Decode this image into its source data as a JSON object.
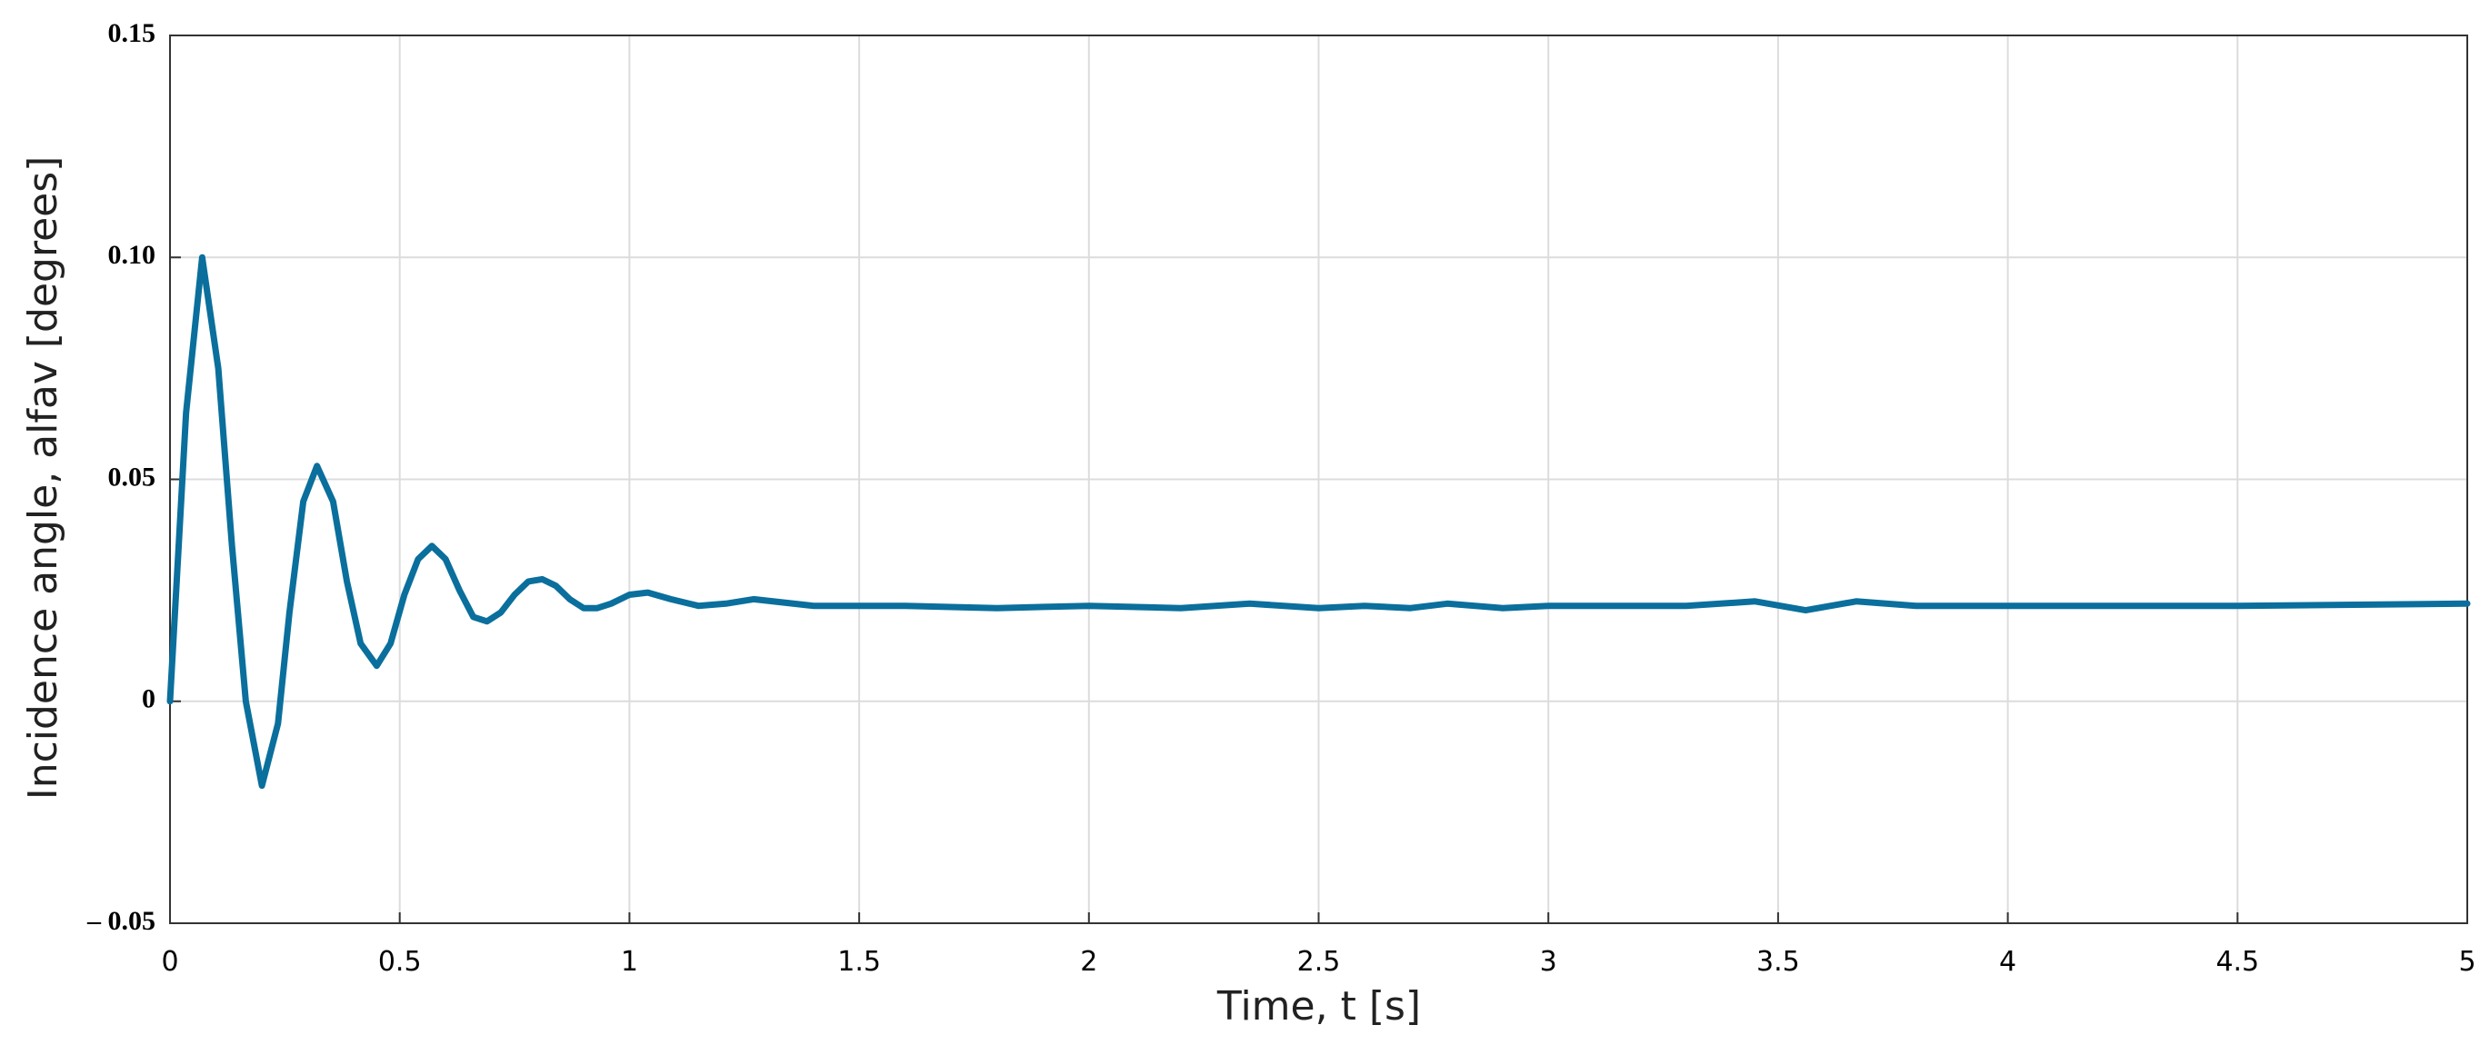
{
  "chart_data": {
    "type": "line",
    "xlabel": "Time, t [s]",
    "ylabel": "Incidence angle, alfav [degrees]",
    "xlim": [
      0,
      5
    ],
    "ylim": [
      -0.05,
      0.15
    ],
    "xticks": [
      0,
      0.5,
      1,
      1.5,
      2,
      2.5,
      3,
      3.5,
      4,
      4.5,
      5
    ],
    "yticks": [
      0.15,
      {
        "value": 0.1,
        "label": "0.10"
      },
      0.05,
      0,
      {
        "value": -0.05,
        "label": "– 0.05"
      }
    ],
    "grid": true,
    "series": [
      {
        "color": "#0a6f9c",
        "x": [
          0,
          0.035,
          0.07,
          0.105,
          0.135,
          0.165,
          0.2,
          0.235,
          0.26,
          0.29,
          0.32,
          0.355,
          0.385,
          0.415,
          0.45,
          0.48,
          0.51,
          0.54,
          0.57,
          0.6,
          0.63,
          0.66,
          0.69,
          0.72,
          0.75,
          0.78,
          0.81,
          0.84,
          0.87,
          0.9,
          0.93,
          0.96,
          1.0,
          1.04,
          1.09,
          1.15,
          1.21,
          1.27,
          1.4,
          1.6,
          1.8,
          2.0,
          2.2,
          2.35,
          2.5,
          2.6,
          2.7,
          2.78,
          2.9,
          3.0,
          3.3,
          3.45,
          3.56,
          3.67,
          3.8,
          4.0,
          4.5,
          5.0
        ],
        "values": [
          0,
          0.065,
          0.1,
          0.075,
          0.035,
          0.0,
          -0.019,
          -0.005,
          0.02,
          0.045,
          0.053,
          0.045,
          0.027,
          0.013,
          0.008,
          0.013,
          0.024,
          0.032,
          0.035,
          0.032,
          0.025,
          0.019,
          0.018,
          0.02,
          0.024,
          0.027,
          0.0275,
          0.026,
          0.023,
          0.021,
          0.021,
          0.022,
          0.024,
          0.0245,
          0.023,
          0.0215,
          0.022,
          0.023,
          0.0215,
          0.0215,
          0.021,
          0.0215,
          0.021,
          0.022,
          0.021,
          0.0215,
          0.021,
          0.022,
          0.021,
          0.0215,
          0.0215,
          0.0225,
          0.0205,
          0.0225,
          0.0215,
          0.0215,
          0.0215,
          0.022
        ]
      }
    ]
  }
}
